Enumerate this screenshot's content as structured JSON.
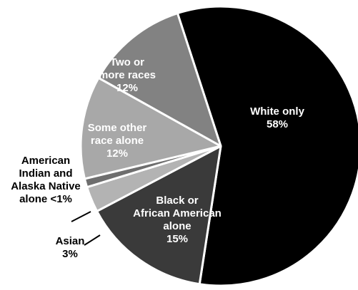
{
  "chart_data": {
    "type": "pie",
    "start_angle_deg": -18,
    "direction": "clockwise",
    "slices": [
      {
        "label_lines": [
          "White only",
          "58%"
        ],
        "value": 58,
        "color": "#000000",
        "label_position": "inside"
      },
      {
        "label_lines": [
          "Black or",
          "African American",
          "alone",
          "15%"
        ],
        "value": 15,
        "color": "#3a3a3a",
        "label_position": "inside"
      },
      {
        "label_lines": [
          "Asian",
          "3%"
        ],
        "value": 3,
        "color": "#b3b3b3",
        "label_position": "outside"
      },
      {
        "label_lines": [
          "American",
          "Indian and",
          "Alaska Native",
          "alone <1%"
        ],
        "value": 1,
        "color": "#6e6e6e",
        "label_position": "outside"
      },
      {
        "label_lines": [
          "Some other",
          "race alone",
          "12%"
        ],
        "value": 12,
        "color": "#a8a8a8",
        "label_position": "inside"
      },
      {
        "label_lines": [
          "Two or",
          "more races",
          "12%"
        ],
        "value": 12,
        "color": "#828282",
        "label_position": "inside"
      }
    ]
  }
}
